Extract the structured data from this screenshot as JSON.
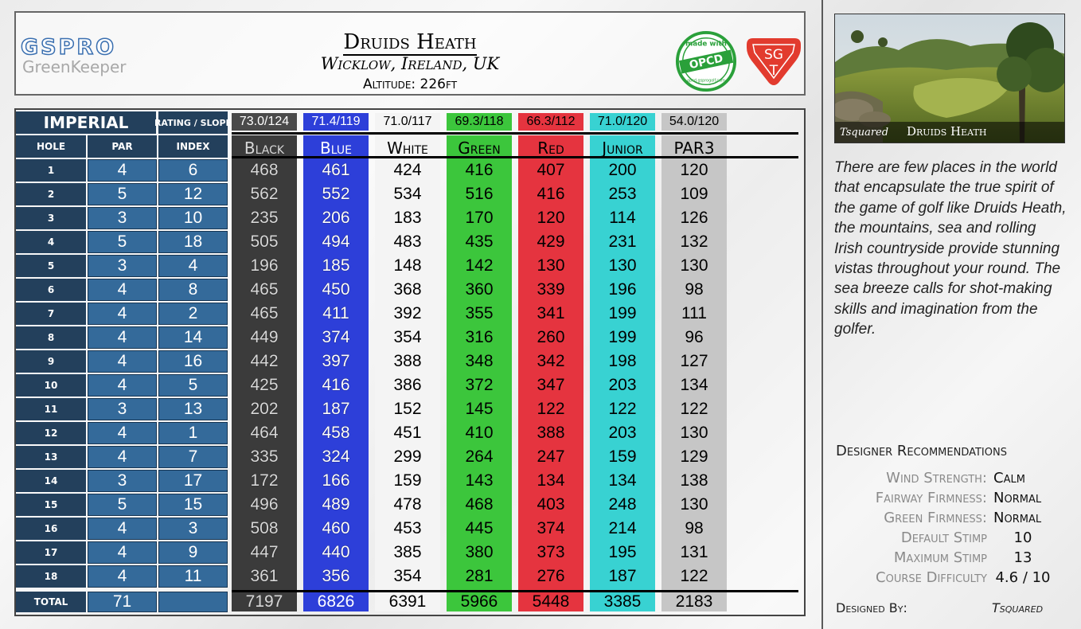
{
  "brand": {
    "name": "GSPRO",
    "subtitle": "GreenKeeper"
  },
  "course": {
    "name": "Druids Heath",
    "location": "Wicklow, Ireland, UK",
    "altitude": "Altitude: 226ft"
  },
  "logos": {
    "opcd_top": "made with",
    "opcd_main": "OPCD",
    "opcd_bottom": "opcd.gsprogolf.com",
    "sgt": "SG",
    "sgt_sub": "T"
  },
  "table": {
    "system_label": "IMPERIAL",
    "rating_label": "RATING / SLOPE",
    "hole_label": "HOLE",
    "par_label": "PAR",
    "index_label": "INDEX",
    "total_label": "TOTAL",
    "total_par": "71",
    "holes": [
      {
        "hole": "1",
        "par": "4",
        "index": "6"
      },
      {
        "hole": "2",
        "par": "5",
        "index": "12"
      },
      {
        "hole": "3",
        "par": "3",
        "index": "10"
      },
      {
        "hole": "4",
        "par": "5",
        "index": "18"
      },
      {
        "hole": "5",
        "par": "3",
        "index": "4"
      },
      {
        "hole": "6",
        "par": "4",
        "index": "8"
      },
      {
        "hole": "7",
        "par": "4",
        "index": "2"
      },
      {
        "hole": "8",
        "par": "4",
        "index": "14"
      },
      {
        "hole": "9",
        "par": "4",
        "index": "16"
      },
      {
        "hole": "10",
        "par": "4",
        "index": "5"
      },
      {
        "hole": "11",
        "par": "3",
        "index": "13"
      },
      {
        "hole": "12",
        "par": "4",
        "index": "1"
      },
      {
        "hole": "13",
        "par": "4",
        "index": "7"
      },
      {
        "hole": "14",
        "par": "3",
        "index": "17"
      },
      {
        "hole": "15",
        "par": "5",
        "index": "15"
      },
      {
        "hole": "16",
        "par": "4",
        "index": "3"
      },
      {
        "hole": "17",
        "par": "4",
        "index": "9"
      },
      {
        "hole": "18",
        "par": "4",
        "index": "11"
      }
    ],
    "tees": [
      {
        "name": "Black",
        "rating": "73.0/124",
        "color": "#3b3b3b",
        "rating_bg": "#4a4a4a",
        "rating_fg": "#ffffff",
        "fg": "#d8d8d8",
        "total": "7197",
        "yards": [
          "468",
          "562",
          "235",
          "505",
          "196",
          "465",
          "465",
          "449",
          "442",
          "425",
          "202",
          "464",
          "335",
          "172",
          "496",
          "508",
          "447",
          "361"
        ]
      },
      {
        "name": "Blue",
        "rating": "71.4/119",
        "color": "#2d3fd9",
        "rating_bg": "#2d3fd9",
        "rating_fg": "#ffffff",
        "fg": "#ffffff",
        "total": "6826",
        "yards": [
          "461",
          "552",
          "206",
          "494",
          "185",
          "450",
          "411",
          "374",
          "397",
          "416",
          "187",
          "458",
          "324",
          "166",
          "489",
          "460",
          "440",
          "356"
        ]
      },
      {
        "name": "White",
        "rating": "71.0/117",
        "color": "#f4f4f4",
        "rating_bg": "#f4f4f4",
        "rating_fg": "#000000",
        "fg": "#000000",
        "total": "6391",
        "yards": [
          "424",
          "534",
          "183",
          "483",
          "148",
          "368",
          "392",
          "354",
          "388",
          "386",
          "152",
          "451",
          "299",
          "159",
          "478",
          "453",
          "385",
          "354"
        ]
      },
      {
        "name": "Green",
        "rating": "69.3/118",
        "color": "#3cc63c",
        "rating_bg": "#3cc63c",
        "rating_fg": "#000000",
        "fg": "#000000",
        "total": "5966",
        "yards": [
          "416",
          "516",
          "170",
          "435",
          "142",
          "360",
          "355",
          "316",
          "348",
          "372",
          "145",
          "410",
          "264",
          "143",
          "468",
          "445",
          "380",
          "281"
        ]
      },
      {
        "name": "Red",
        "rating": "66.3/112",
        "color": "#e5343f",
        "rating_bg": "#e5343f",
        "rating_fg": "#000000",
        "fg": "#000000",
        "total": "5448",
        "yards": [
          "407",
          "416",
          "120",
          "429",
          "130",
          "339",
          "341",
          "260",
          "342",
          "347",
          "122",
          "388",
          "247",
          "134",
          "403",
          "374",
          "373",
          "276"
        ]
      },
      {
        "name": "Junior",
        "rating": "71.0/120",
        "color": "#38d2d2",
        "rating_bg": "#38d2d2",
        "rating_fg": "#000000",
        "fg": "#000000",
        "total": "3385",
        "yards": [
          "200",
          "253",
          "114",
          "231",
          "130",
          "196",
          "199",
          "199",
          "198",
          "203",
          "122",
          "203",
          "159",
          "134",
          "248",
          "214",
          "195",
          "187"
        ]
      },
      {
        "name": "PAR3",
        "rating": "54.0/120",
        "color": "#c6c6c6",
        "rating_bg": "#c6c6c6",
        "rating_fg": "#000000",
        "fg": "#000000",
        "total": "2183",
        "yards": [
          "120",
          "109",
          "126",
          "132",
          "130",
          "98",
          "111",
          "96",
          "127",
          "134",
          "122",
          "130",
          "129",
          "138",
          "130",
          "98",
          "131",
          "122"
        ]
      }
    ]
  },
  "photo": {
    "caption_left": "Tsquared",
    "caption_right": "Druids Heath"
  },
  "description": "There are few places in the world that encapsulate the true spirit of the game of golf like Druids Heath, the mountains, sea and rolling Irish countryside provide stunning vistas throughout your round.  The sea breeze calls for shot-making skills and imagination from the golfer.",
  "recommendations": {
    "title": "Designer Recommendations",
    "items": [
      {
        "label": "Wind Strength:",
        "value": "Calm"
      },
      {
        "label": "Fairway Firmness:",
        "value": "Normal"
      },
      {
        "label": "Green Firmness:",
        "value": "Normal"
      },
      {
        "label": "Default Stimp",
        "value": "10"
      },
      {
        "label": "Maximum Stimp",
        "value": "13"
      },
      {
        "label": "Course Difficulty",
        "value": "4.6 / 10"
      }
    ],
    "designed_by_label": "Designed By:",
    "designer": "Tsquared"
  }
}
